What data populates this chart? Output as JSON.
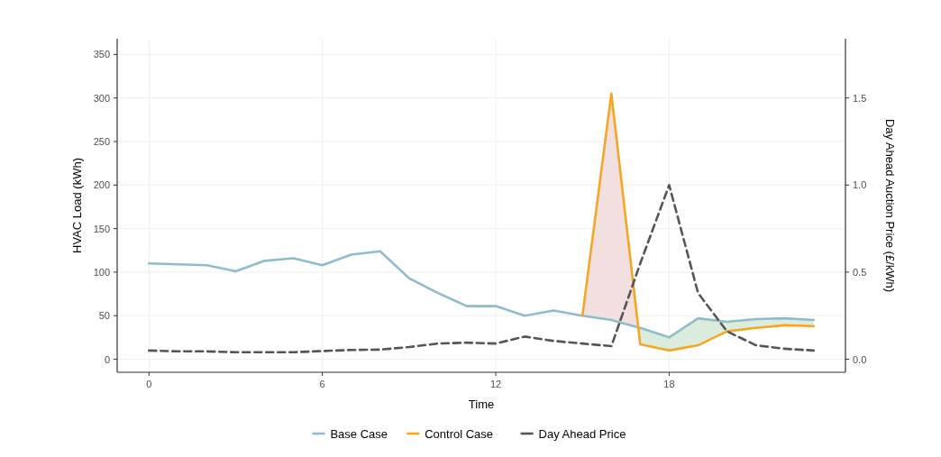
{
  "chart_data": {
    "type": "line",
    "xlabel": "Time",
    "ylabel": "HVAC Load (kWh)",
    "y2label": "Day Ahead Auction Price (£/kWh)",
    "x": [
      0,
      1,
      2,
      3,
      4,
      5,
      6,
      7,
      8,
      9,
      10,
      11,
      12,
      13,
      14,
      15,
      16,
      17,
      18,
      19,
      20,
      21,
      22,
      23
    ],
    "xlim": [
      -1.1,
      24.1
    ],
    "xticks": [
      0,
      6,
      12,
      18
    ],
    "ylim": [
      -15,
      368
    ],
    "yticks": [
      0,
      50,
      100,
      150,
      200,
      250,
      300,
      350
    ],
    "y2lim": [
      -0.075,
      1.84
    ],
    "y2ticks": [
      {
        "value": 0,
        "label": "0.0"
      },
      0.5,
      {
        "value": 1,
        "label": "1.0"
      },
      1.5
    ],
    "grid": true,
    "legend": "bottom",
    "marker": "none",
    "series": [
      {
        "name": "Base Case",
        "color": "#8fbccb",
        "x": [
          0,
          1,
          2,
          3,
          4,
          5,
          6,
          7,
          8,
          9,
          10,
          11,
          12,
          13,
          14,
          15,
          16,
          16.93,
          17,
          18,
          19,
          20,
          21,
          22,
          23
        ],
        "values": [
          110,
          109,
          108,
          101,
          113,
          116,
          108,
          120,
          124,
          93,
          76,
          61,
          61,
          50,
          56,
          50,
          45,
          36.6,
          36,
          25,
          47,
          43,
          46,
          47,
          45
        ],
        "lower": [
          null,
          null,
          null,
          null,
          null,
          null,
          null,
          null,
          null,
          null,
          null,
          null,
          null,
          null,
          null,
          null,
          null,
          36.6,
          17,
          10,
          16,
          32,
          36,
          39,
          38
        ],
        "upper": [
          null,
          null,
          null,
          null,
          null,
          null,
          null,
          null,
          null,
          null,
          null,
          null,
          null,
          null,
          null,
          null,
          null,
          36.6,
          36,
          25,
          47,
          43,
          46,
          47,
          45
        ]
      },
      {
        "name": "Control Case",
        "color": "#f5a623",
        "x": [
          15,
          16,
          16.93,
          17,
          18,
          19,
          20,
          21,
          22,
          23
        ],
        "values": [
          50,
          305,
          36.6,
          17,
          10,
          16,
          32,
          36,
          39,
          38
        ],
        "lower": [
          50,
          45,
          36.6,
          null,
          null,
          null,
          null,
          null,
          null,
          null
        ],
        "upper": [
          50,
          305,
          36.6,
          null,
          null,
          null,
          null,
          null,
          null,
          null
        ]
      },
      {
        "name": "Day Ahead Price",
        "color": "#555555",
        "axis": "y2",
        "line_style": "dashed",
        "values": [
          0.05,
          0.045,
          0.045,
          0.04,
          0.04,
          0.04,
          0.047,
          0.053,
          0.055,
          0.07,
          0.09,
          0.095,
          0.09,
          0.13,
          0.105,
          0.09,
          0.075,
          0.55,
          1.0,
          0.38,
          0.16,
          0.08,
          0.06,
          0.05
        ]
      }
    ]
  }
}
